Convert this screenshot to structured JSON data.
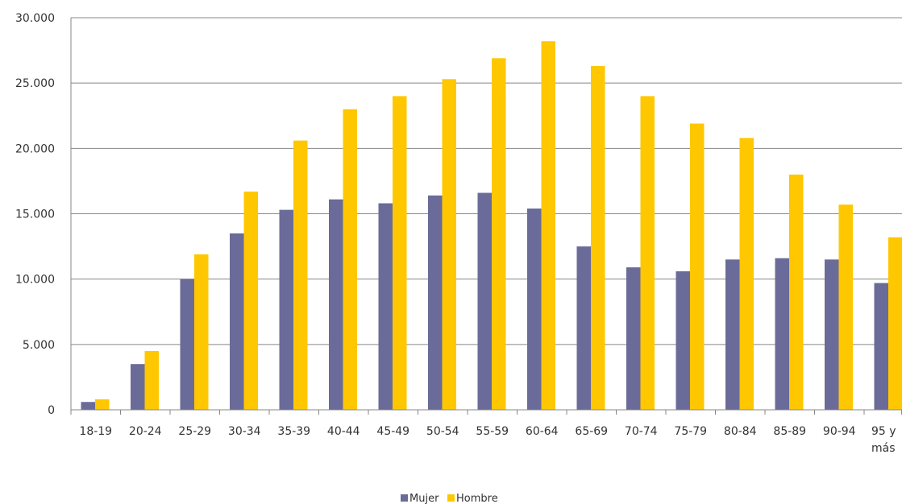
{
  "chart_data": {
    "type": "bar",
    "categories": [
      "18-19",
      "20-24",
      "25-29",
      "30-34",
      "35-39",
      "40-44",
      "45-49",
      "50-54",
      "55-59",
      "60-64",
      "65-69",
      "70-74",
      "75-79",
      "80-84",
      "85-89",
      "90-94",
      "95 y más"
    ],
    "series": [
      {
        "name": "Mujer",
        "color": "#6B6B99",
        "values": [
          600,
          3500,
          10000,
          13500,
          15300,
          16100,
          15800,
          16400,
          16600,
          15400,
          12500,
          10900,
          10600,
          11500,
          11600,
          11500,
          9700
        ]
      },
      {
        "name": "Hombre",
        "color": "#FFC700",
        "values": [
          800,
          4500,
          11900,
          16700,
          20600,
          23000,
          24000,
          25300,
          26900,
          28200,
          26300,
          24000,
          21900,
          20800,
          18000,
          15700,
          13200
        ]
      }
    ],
    "ylim": [
      0,
      30000
    ],
    "yticks": [
      "0",
      "5.000",
      "10.000",
      "15.000",
      "20.000",
      "25.000",
      "30.000"
    ],
    "grid": true,
    "legend": "bottom"
  }
}
